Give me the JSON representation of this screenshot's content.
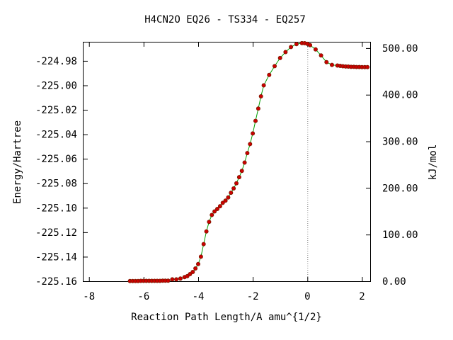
{
  "chart_data": {
    "type": "scatter",
    "title": "H4CN2O   EQ26 - TS334 - EQ257",
    "xlabel": "Reaction Path Length/A amu^{1/2}",
    "ylabel": "Energy/Hartree",
    "y2label": "kJ/mol",
    "xlim": [
      -8.2,
      2.3
    ],
    "ylim": [
      -225.16,
      -224.965
    ],
    "y2lim": [
      0,
      512
    ],
    "x_ticks": [
      -8,
      -6,
      -4,
      -2,
      0,
      2
    ],
    "x_tick_labels": [
      "-8",
      "-6",
      "-4",
      "-2",
      "0",
      "2"
    ],
    "y_ticks": [
      -225.16,
      -225.14,
      -225.12,
      -225.1,
      -225.08,
      -225.06,
      -225.04,
      -225.02,
      -225.0,
      -224.98
    ],
    "y_tick_labels": [
      "-225.16",
      "-225.14",
      "-225.12",
      "-225.10",
      "-225.08",
      "-225.06",
      "-225.04",
      "-225.02",
      "-225.00",
      "-224.98"
    ],
    "y2_ticks": [
      0,
      100,
      200,
      300,
      400,
      500
    ],
    "y2_tick_labels": [
      "0.00",
      "100.00",
      "200.00",
      "300.00",
      "400.00",
      "500.00"
    ],
    "ts_marker_x": 0,
    "colors": {
      "line": "#00a000",
      "marker": "#cc0000",
      "marker_edge": "#7a1a00",
      "ts_line": "#808080"
    },
    "series": [
      {
        "x": [
          -6.5,
          -6.4,
          -6.3,
          -6.2,
          -6.1,
          -6.0,
          -5.9,
          -5.8,
          -5.7,
          -5.6,
          -5.5,
          -5.4,
          -5.3,
          -5.2,
          -5.1,
          -4.95,
          -4.8,
          -4.65,
          -4.5,
          -4.4,
          -4.3,
          -4.2,
          -4.1,
          -4.0,
          -3.9,
          -3.8,
          -3.7,
          -3.6,
          -3.5,
          -3.4,
          -3.3,
          -3.2,
          -3.1,
          -3.0,
          -2.9,
          -2.8,
          -2.7,
          -2.6,
          -2.5,
          -2.4,
          -2.3,
          -2.2,
          -2.1,
          -2.0,
          -1.9,
          -1.8,
          -1.7,
          -1.6,
          -1.4,
          -1.2,
          -1.0,
          -0.8,
          -0.6,
          -0.4,
          -0.2,
          -0.1,
          0.0,
          0.1,
          0.3,
          0.5,
          0.7,
          0.9,
          1.1,
          1.2,
          1.3,
          1.4,
          1.5,
          1.6,
          1.7,
          1.8,
          1.9,
          2.0,
          2.1,
          2.2
        ],
        "y": [
          -225.1599,
          -225.1598,
          -225.1599,
          -225.1598,
          -225.1597,
          -225.1597,
          -225.1597,
          -225.1597,
          -225.1597,
          -225.1597,
          -225.1597,
          -225.1597,
          -225.1596,
          -225.1596,
          -225.1596,
          -225.1585,
          -225.1585,
          -225.1578,
          -225.1567,
          -225.1559,
          -225.1542,
          -225.1525,
          -225.1496,
          -225.146,
          -225.14,
          -225.1297,
          -225.1193,
          -225.1115,
          -225.1059,
          -225.103,
          -225.101,
          -225.0987,
          -225.096,
          -225.0942,
          -225.0916,
          -225.0877,
          -225.0842,
          -225.08,
          -225.075,
          -225.0699,
          -225.0631,
          -225.0553,
          -225.048,
          -225.0393,
          -225.029,
          -225.019,
          -225.009,
          -225.0,
          -224.9915,
          -224.9843,
          -224.9777,
          -224.9728,
          -224.9687,
          -224.9663,
          -224.9655,
          -224.9656,
          -224.9661,
          -224.9672,
          -224.9706,
          -224.9756,
          -224.981,
          -224.9833,
          -224.9838,
          -224.9841,
          -224.9844,
          -224.9846,
          -224.9847,
          -224.9849,
          -224.9849,
          -224.985,
          -224.985,
          -224.9851,
          -224.9851,
          -224.9851
        ]
      }
    ]
  }
}
